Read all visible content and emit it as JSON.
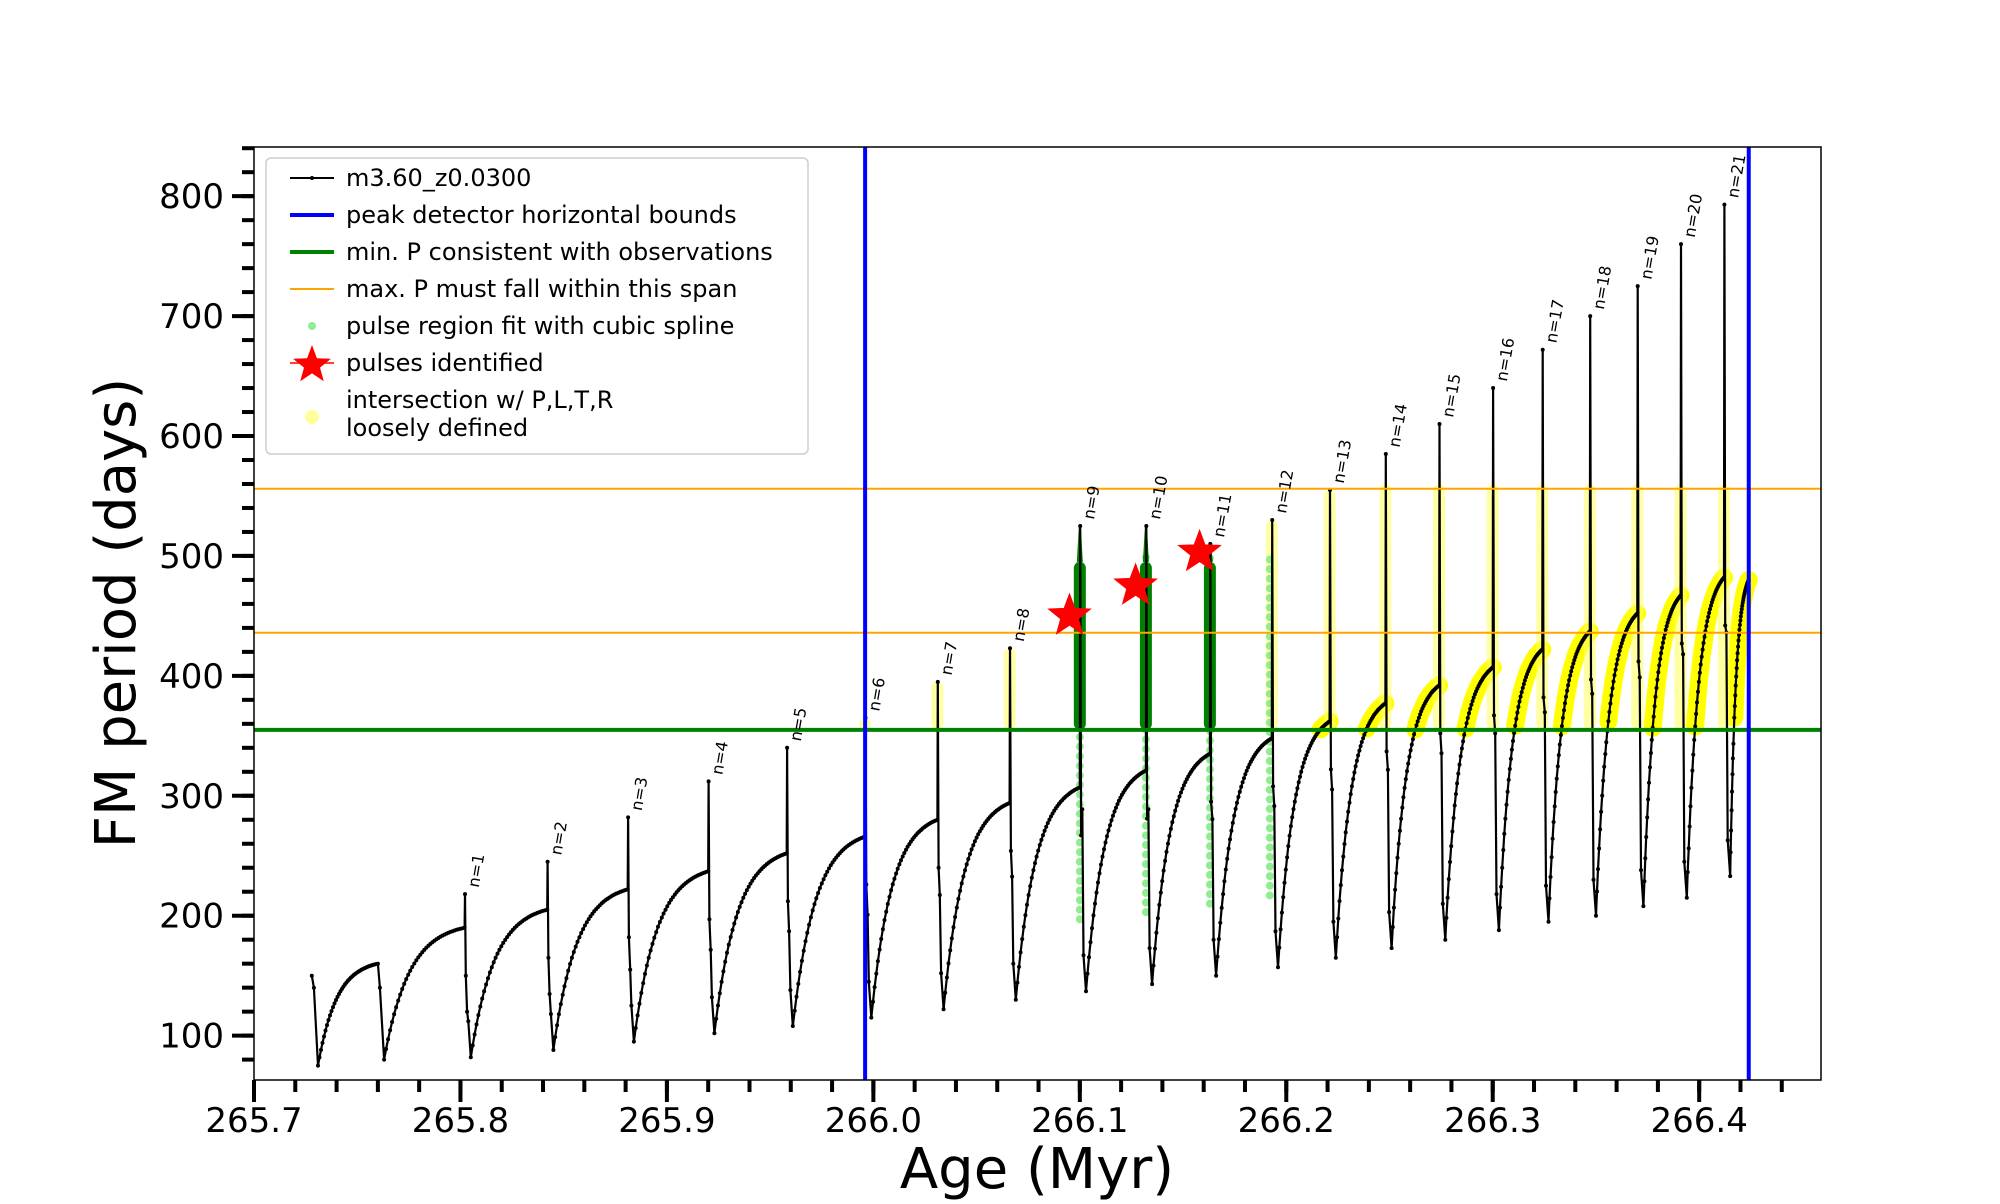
{
  "chart_data": {
    "type": "line",
    "title": "",
    "xlabel": "Age (Myr)",
    "ylabel": "FM period (days)",
    "xlim": [
      265.7,
      266.459
    ],
    "ylim": [
      63,
      841
    ],
    "xticks": [
      "265.7",
      "265.8",
      "265.9",
      "266.0",
      "266.1",
      "266.2",
      "266.3",
      "266.4"
    ],
    "yticks": [
      "100",
      "200",
      "300",
      "400",
      "500",
      "600",
      "700",
      "800"
    ],
    "legend_position": "top-left",
    "legend": [
      {
        "label": "m3.60_z0.0300",
        "color": "#000000"
      },
      {
        "label": "peak detector horizontal bounds",
        "color": "#0000ff"
      },
      {
        "label": "min. P consistent with observations",
        "color": "#008000"
      },
      {
        "label": "max. P must fall within this span",
        "color": "#ffa500"
      },
      {
        "label": "pulse region fit with cubic spline",
        "color": "#90ee90"
      },
      {
        "label": "pulses identified",
        "color": "#ff0000"
      },
      {
        "label": "intersection w/ P,L,T,R",
        "label2": "loosely defined",
        "color": "#ffff99"
      }
    ],
    "vertical_bounds": [
      265.996,
      266.424
    ],
    "min_p": 355,
    "max_p_span": [
      436,
      556
    ],
    "start": {
      "age": 265.728,
      "value": 150,
      "first_min": 75,
      "pre0_age": 265.76,
      "pre0": 160,
      "min0": 80
    },
    "end": {
      "age": 266.424,
      "value": 480
    },
    "pulses": [
      {
        "label": "n=1",
        "age": 265.802,
        "pre": 190,
        "peak": 218,
        "min": 82
      },
      {
        "label": "n=2",
        "age": 265.842,
        "pre": 205,
        "peak": 245,
        "min": 88
      },
      {
        "label": "n=3",
        "age": 265.881,
        "pre": 222,
        "peak": 282,
        "min": 95
      },
      {
        "label": "n=4",
        "age": 265.92,
        "pre": 237,
        "peak": 312,
        "min": 102
      },
      {
        "label": "n=5",
        "age": 265.958,
        "pre": 252,
        "peak": 340,
        "min": 108
      },
      {
        "label": "n=6",
        "age": 265.996,
        "pre": 266,
        "peak": 365,
        "min": 115
      },
      {
        "label": "n=7",
        "age": 266.031,
        "pre": 280,
        "peak": 395,
        "min": 122
      },
      {
        "label": "n=8",
        "age": 266.066,
        "pre": 294,
        "peak": 423,
        "min": 130
      },
      {
        "label": "n=9",
        "age": 266.1,
        "pre": 307,
        "peak": 525,
        "min": 137
      },
      {
        "label": "n=10",
        "age": 266.132,
        "pre": 321,
        "peak": 525,
        "min": 143
      },
      {
        "label": "n=11",
        "age": 266.163,
        "pre": 335,
        "peak": 510,
        "min": 150
      },
      {
        "label": "n=12",
        "age": 266.193,
        "pre": 348,
        "peak": 530,
        "min": 157
      },
      {
        "label": "n=13",
        "age": 266.221,
        "pre": 362,
        "peak": 555,
        "min": 165
      },
      {
        "label": "n=14",
        "age": 266.248,
        "pre": 377,
        "peak": 585,
        "min": 173
      },
      {
        "label": "n=15",
        "age": 266.274,
        "pre": 392,
        "peak": 610,
        "min": 180
      },
      {
        "label": "n=16",
        "age": 266.3,
        "pre": 407,
        "peak": 640,
        "min": 188
      },
      {
        "label": "n=17",
        "age": 266.324,
        "pre": 422,
        "peak": 672,
        "min": 195
      },
      {
        "label": "n=18",
        "age": 266.347,
        "pre": 437,
        "peak": 700,
        "min": 200
      },
      {
        "label": "n=19",
        "age": 266.37,
        "pre": 452,
        "peak": 725,
        "min": 208
      },
      {
        "label": "n=20",
        "age": 266.391,
        "pre": 467,
        "peak": 760,
        "min": 215
      },
      {
        "label": "n=21",
        "age": 266.412,
        "pre": 482,
        "peak": 793,
        "min": 233
      }
    ],
    "stars": [
      {
        "age": 266.095,
        "value": 450
      },
      {
        "age": 266.127,
        "value": 475
      },
      {
        "age": 266.158,
        "value": 503
      }
    ]
  }
}
